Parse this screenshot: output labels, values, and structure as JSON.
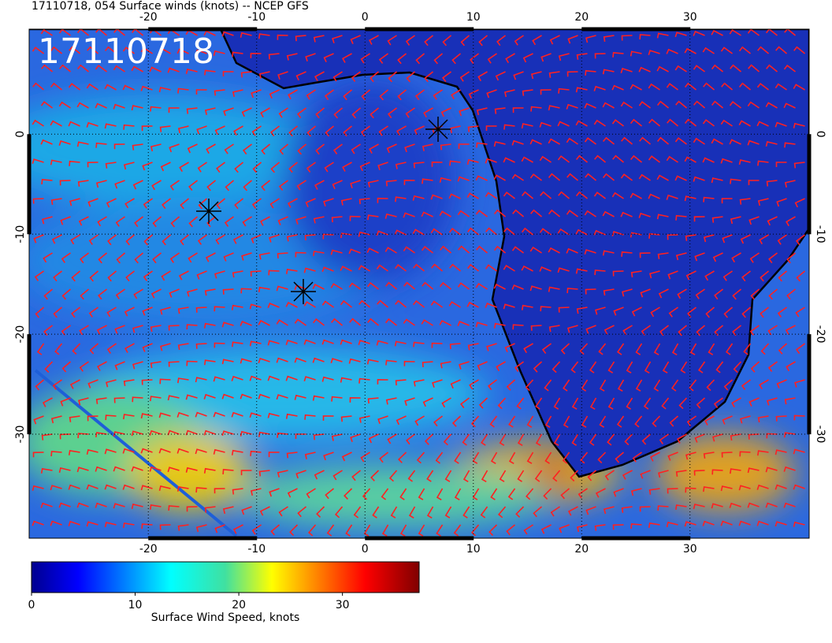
{
  "header": {
    "title": "17110718, 054 Surface winds (knots) -- NCEP GFS"
  },
  "map": {
    "stamp": "17110718",
    "lon_lim": [
      -31,
      41
    ],
    "lat_lim": [
      -40.4,
      10.5
    ],
    "lon_ticks": [
      -20,
      -10,
      0,
      10,
      20,
      30
    ],
    "lat_ticks": [
      0,
      -10,
      -20,
      -30
    ]
  },
  "colorbar": {
    "range": [
      0,
      37.4
    ],
    "ticks": [
      0,
      10,
      20,
      30
    ],
    "label": "Surface Wind Speed, knots"
  }
}
